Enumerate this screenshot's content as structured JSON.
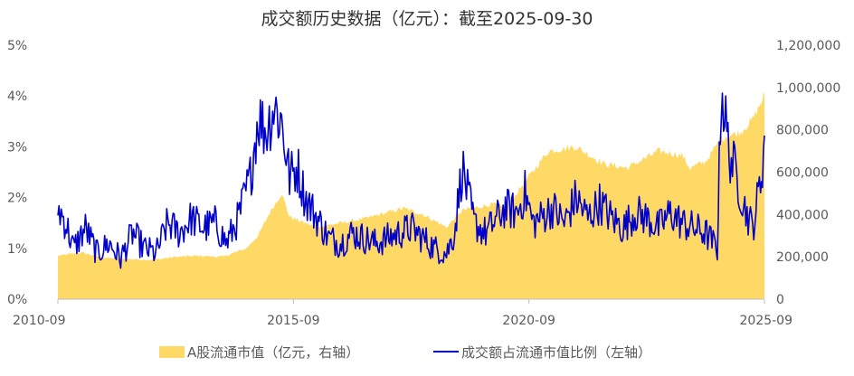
{
  "chart_data": {
    "type": "area+line",
    "title": "成交额历史数据（亿元）：截至2025-09-30",
    "x_range": [
      "2010-09",
      "2025-09"
    ],
    "x_ticks": [
      "2010-09",
      "2015-09",
      "2020-09",
      "2025-09"
    ],
    "left_axis": {
      "ticks": [
        "0%",
        "1%",
        "2%",
        "3%",
        "4%",
        "5%"
      ],
      "range": [
        0,
        5
      ],
      "unit": "%"
    },
    "right_axis": {
      "ticks": [
        "0",
        "200,000",
        "400,000",
        "600,000",
        "800,000",
        "1,000,000",
        "1,200,000"
      ],
      "range": [
        0,
        1200000
      ]
    },
    "grid": false,
    "legend_position": "bottom",
    "series": [
      {
        "name": "A股流通市值（亿元，右轴）",
        "type": "area",
        "axis": "right",
        "color": "#FFD966",
        "x": [
          "2010-09",
          "2011-03",
          "2011-09",
          "2012-03",
          "2012-09",
          "2013-03",
          "2013-09",
          "2014-03",
          "2014-09",
          "2014-12",
          "2015-03",
          "2015-06",
          "2015-08",
          "2015-12",
          "2016-03",
          "2016-09",
          "2017-03",
          "2017-09",
          "2018-01",
          "2018-06",
          "2018-12",
          "2019-04",
          "2019-12",
          "2020-03",
          "2020-09",
          "2021-02",
          "2021-09",
          "2022-04",
          "2022-10",
          "2023-06",
          "2023-12",
          "2024-02",
          "2024-06",
          "2024-10",
          "2025-03",
          "2025-06",
          "2025-09"
        ],
        "values": [
          205000,
          220000,
          195000,
          190000,
          185000,
          200000,
          205000,
          200000,
          240000,
          300000,
          410000,
          500000,
          390000,
          360000,
          340000,
          360000,
          380000,
          410000,
          430000,
          400000,
          340000,
          420000,
          450000,
          430000,
          580000,
          700000,
          720000,
          640000,
          620000,
          700000,
          680000,
          620000,
          650000,
          760000,
          790000,
          850000,
          960000
        ]
      },
      {
        "name": "成交额占流通市值比例（左轴）",
        "type": "line",
        "axis": "left",
        "color": "#0000CC",
        "x": [
          "2010-09",
          "2010-11",
          "2011-01",
          "2011-04",
          "2011-07",
          "2011-10",
          "2012-01",
          "2012-04",
          "2012-07",
          "2012-10",
          "2013-01",
          "2013-04",
          "2013-07",
          "2013-10",
          "2014-01",
          "2014-04",
          "2014-07",
          "2014-10",
          "2014-12",
          "2015-02",
          "2015-04",
          "2015-06",
          "2015-08",
          "2015-10",
          "2015-12",
          "2016-03",
          "2016-06",
          "2016-09",
          "2016-12",
          "2017-03",
          "2017-06",
          "2017-09",
          "2017-12",
          "2018-03",
          "2018-06",
          "2018-09",
          "2018-12",
          "2019-02",
          "2019-04",
          "2019-07",
          "2019-10",
          "2020-01",
          "2020-03",
          "2020-06",
          "2020-08",
          "2020-10",
          "2020-12",
          "2021-03",
          "2021-06",
          "2021-09",
          "2021-12",
          "2022-03",
          "2022-06",
          "2022-09",
          "2022-12",
          "2023-03",
          "2023-06",
          "2023-09",
          "2023-12",
          "2024-03",
          "2024-06",
          "2024-09",
          "2024-10",
          "2024-12",
          "2025-02",
          "2025-04",
          "2025-06",
          "2025-08",
          "2025-09"
        ],
        "values": [
          1.8,
          1.5,
          1.0,
          1.4,
          0.9,
          1.1,
          0.8,
          1.3,
          1.0,
          0.9,
          1.5,
          1.3,
          1.6,
          1.4,
          1.5,
          1.1,
          1.6,
          2.4,
          3.6,
          3.3,
          3.8,
          3.5,
          2.4,
          2.6,
          2.0,
          1.6,
          1.2,
          1.1,
          1.3,
          1.2,
          1.1,
          1.2,
          1.3,
          1.4,
          1.2,
          1.0,
          0.9,
          1.3,
          2.6,
          1.5,
          1.3,
          1.6,
          1.8,
          1.7,
          2.1,
          1.5,
          1.6,
          1.8,
          1.5,
          2.0,
          1.6,
          1.9,
          1.6,
          1.4,
          1.7,
          1.6,
          1.4,
          1.7,
          1.5,
          1.4,
          1.3,
          1.0,
          4.2,
          2.9,
          2.4,
          1.8,
          1.4,
          2.3,
          3.1
        ]
      }
    ]
  }
}
